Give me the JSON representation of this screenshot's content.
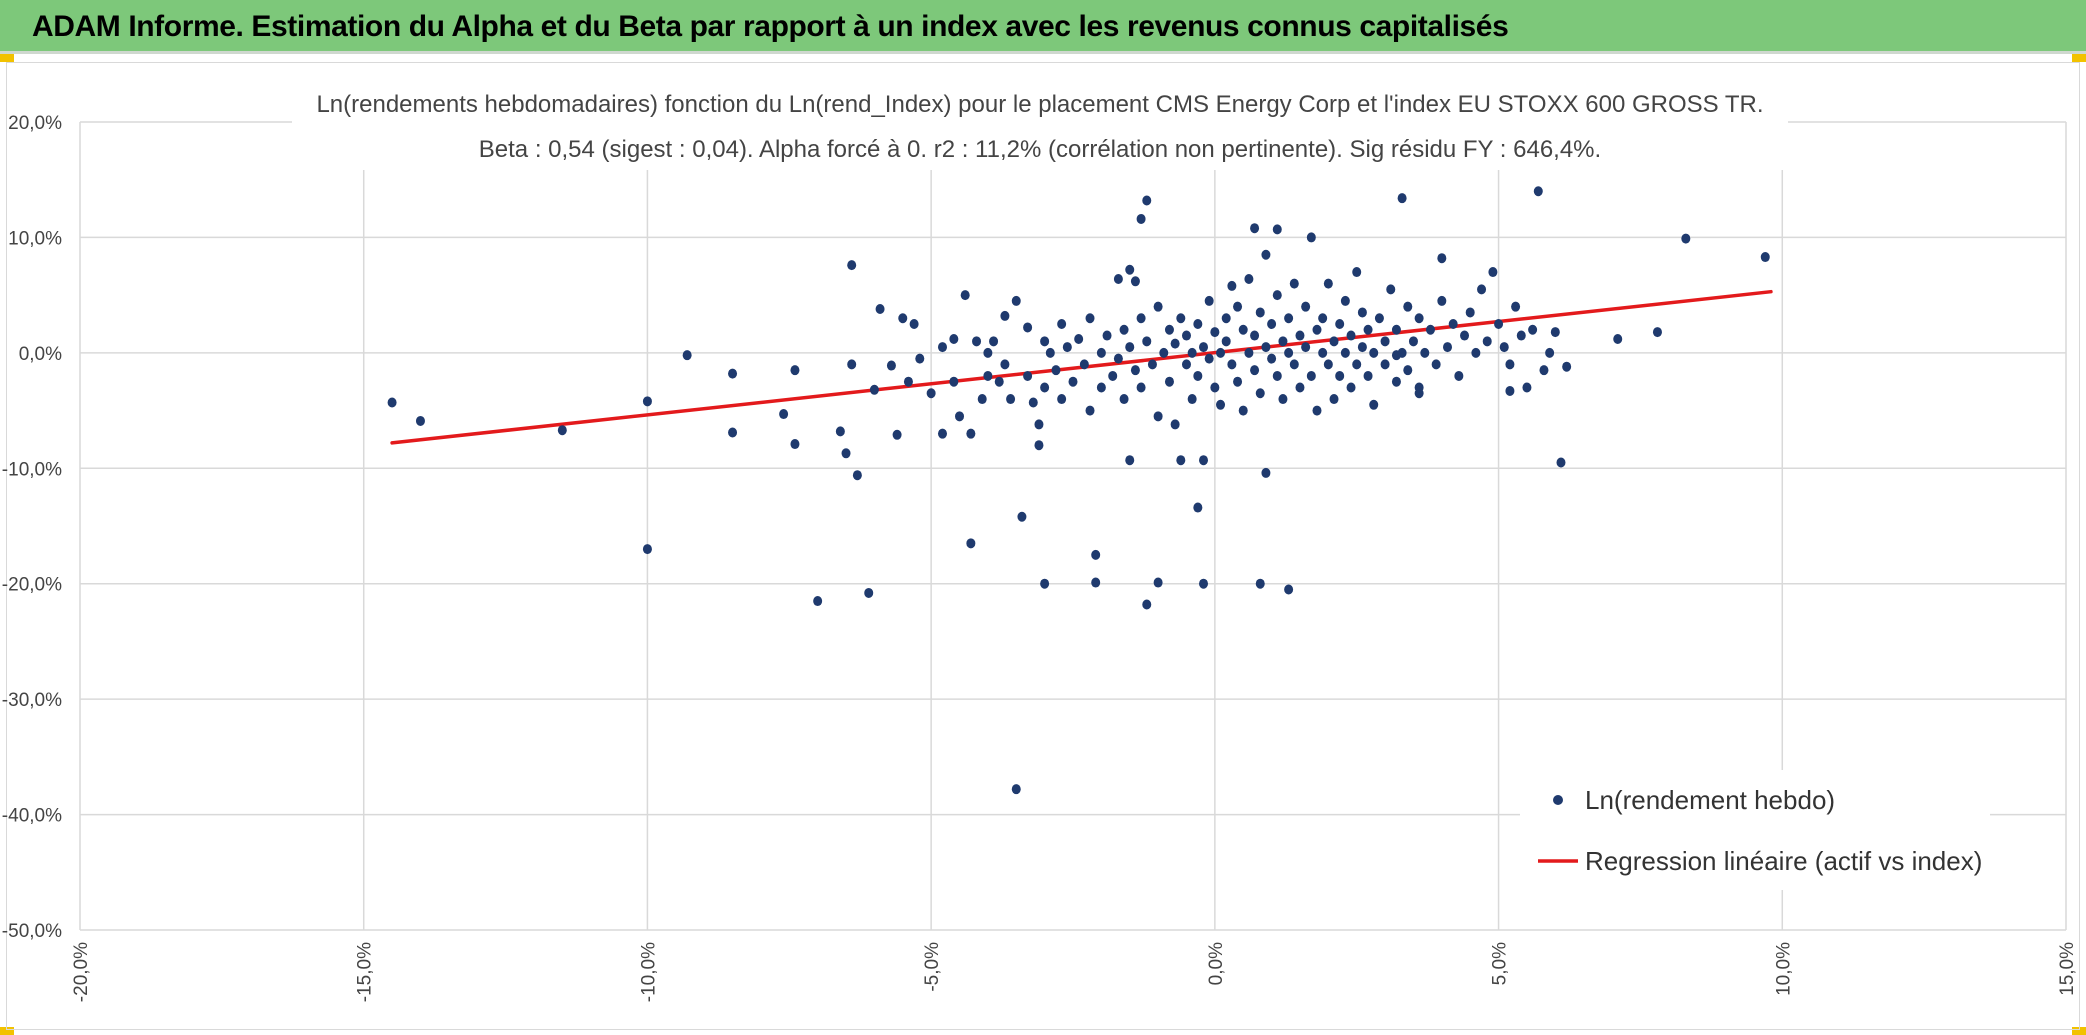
{
  "header": {
    "title": "ADAM Informe. Estimation du Alpha et du Beta par rapport à un index avec les revenus connus capitalisés",
    "background_color": "#7dc87a"
  },
  "chart_data": {
    "type": "scatter",
    "title": "Ln(rendements hebdomadaires) fonction du Ln(rend_Index) pour le placement CMS Energy Corp et l'index EU STOXX 600 GROSS TR.",
    "subtitle": "Beta : 0,54 (sigest : 0,04). Alpha forcé à 0. r2 : 11,2% (corrélation non pertinente). Sig résidu FY : 646,4%.",
    "xlabel": "",
    "ylabel": "",
    "xlim": [
      -0.2,
      0.15
    ],
    "ylim": [
      -0.5,
      0.2
    ],
    "x_ticks": [
      -0.2,
      -0.15,
      -0.1,
      -0.05,
      0.0,
      0.05,
      0.1,
      0.15
    ],
    "x_tick_labels": [
      "-20,0%",
      "-15,0%",
      "-10,0%",
      "-5,0%",
      "0,0%",
      "5,0%",
      "10,0%",
      "15,0%"
    ],
    "y_ticks": [
      0.2,
      0.1,
      0.0,
      -0.1,
      -0.2,
      -0.3,
      -0.4,
      -0.5
    ],
    "y_tick_labels": [
      "20,0%",
      "10,0%",
      "0,0%",
      "-10,0%",
      "-20,0%",
      "-30,0%",
      "-40,0%",
      "-50,0%"
    ],
    "grid": true,
    "legend_position": "bottom-right",
    "series": [
      {
        "name": "Ln(rendement hebdo)",
        "type": "scatter",
        "color": "#1f3a6e",
        "points": [
          [
            -0.145,
            -0.043
          ],
          [
            -0.14,
            -0.059
          ],
          [
            -0.115,
            -0.067
          ],
          [
            -0.1,
            -0.042
          ],
          [
            -0.1,
            -0.17
          ],
          [
            -0.093,
            -0.002
          ],
          [
            -0.085,
            -0.018
          ],
          [
            -0.085,
            -0.069
          ],
          [
            -0.076,
            -0.053
          ],
          [
            -0.074,
            -0.015
          ],
          [
            -0.074,
            -0.079
          ],
          [
            -0.07,
            -0.215
          ],
          [
            -0.066,
            -0.068
          ],
          [
            -0.065,
            -0.087
          ],
          [
            -0.064,
            0.076
          ],
          [
            -0.064,
            -0.01
          ],
          [
            -0.063,
            -0.106
          ],
          [
            -0.061,
            -0.208
          ],
          [
            -0.06,
            -0.032
          ],
          [
            -0.059,
            0.038
          ],
          [
            -0.057,
            -0.011
          ],
          [
            -0.056,
            -0.071
          ],
          [
            -0.055,
            0.03
          ],
          [
            -0.054,
            -0.025
          ],
          [
            -0.053,
            0.025
          ],
          [
            -0.052,
            -0.005
          ],
          [
            -0.05,
            -0.035
          ],
          [
            -0.048,
            0.005
          ],
          [
            -0.048,
            -0.07
          ],
          [
            -0.046,
            0.012
          ],
          [
            -0.046,
            -0.025
          ],
          [
            -0.045,
            -0.055
          ],
          [
            -0.044,
            0.05
          ],
          [
            -0.043,
            -0.07
          ],
          [
            -0.043,
            -0.165
          ],
          [
            -0.042,
            0.01
          ],
          [
            -0.041,
            -0.04
          ],
          [
            -0.04,
            0.0
          ],
          [
            -0.04,
            -0.02
          ],
          [
            -0.039,
            0.01
          ],
          [
            -0.038,
            -0.025
          ],
          [
            -0.037,
            0.032
          ],
          [
            -0.037,
            -0.01
          ],
          [
            -0.036,
            -0.04
          ],
          [
            -0.035,
            0.045
          ],
          [
            -0.035,
            -0.378
          ],
          [
            -0.034,
            -0.142
          ],
          [
            -0.033,
            0.022
          ],
          [
            -0.033,
            -0.02
          ],
          [
            -0.032,
            -0.043
          ],
          [
            -0.031,
            -0.062
          ],
          [
            -0.031,
            -0.08
          ],
          [
            -0.03,
            0.01
          ],
          [
            -0.03,
            -0.03
          ],
          [
            -0.029,
            0.0
          ],
          [
            -0.028,
            -0.015
          ],
          [
            -0.027,
            0.025
          ],
          [
            -0.027,
            -0.04
          ],
          [
            -0.026,
            0.005
          ],
          [
            -0.025,
            -0.025
          ],
          [
            -0.024,
            0.012
          ],
          [
            -0.023,
            -0.01
          ],
          [
            -0.022,
            0.03
          ],
          [
            -0.022,
            -0.05
          ],
          [
            -0.021,
            -0.175
          ],
          [
            -0.021,
            -0.199
          ],
          [
            -0.02,
            0.0
          ],
          [
            -0.02,
            -0.03
          ],
          [
            -0.019,
            0.015
          ],
          [
            -0.018,
            -0.02
          ],
          [
            -0.017,
            0.064
          ],
          [
            -0.017,
            -0.005
          ],
          [
            -0.016,
            0.02
          ],
          [
            -0.016,
            -0.04
          ],
          [
            -0.015,
            0.005
          ],
          [
            -0.015,
            -0.093
          ],
          [
            -0.014,
            -0.015
          ],
          [
            -0.013,
            0.03
          ],
          [
            -0.013,
            -0.03
          ],
          [
            -0.012,
            -0.218
          ],
          [
            -0.012,
            0.01
          ],
          [
            -0.011,
            -0.01
          ],
          [
            -0.01,
            0.04
          ],
          [
            -0.01,
            -0.199
          ],
          [
            -0.01,
            -0.055
          ],
          [
            -0.009,
            0.0
          ],
          [
            -0.008,
            0.02
          ],
          [
            -0.008,
            -0.025
          ],
          [
            -0.007,
            0.008
          ],
          [
            -0.007,
            -0.062
          ],
          [
            -0.006,
            -0.093
          ],
          [
            -0.006,
            0.03
          ],
          [
            -0.005,
            -0.01
          ],
          [
            -0.005,
            0.015
          ],
          [
            -0.004,
            -0.04
          ],
          [
            -0.004,
            0.0
          ],
          [
            -0.003,
            0.025
          ],
          [
            -0.003,
            -0.02
          ],
          [
            -0.003,
            -0.134
          ],
          [
            -0.002,
            0.005
          ],
          [
            -0.002,
            -0.093
          ],
          [
            -0.001,
            0.045
          ],
          [
            -0.001,
            -0.005
          ],
          [
            0.0,
            0.018
          ],
          [
            0.0,
            -0.03
          ],
          [
            0.001,
            0.0
          ],
          [
            0.001,
            -0.045
          ],
          [
            0.002,
            0.03
          ],
          [
            0.002,
            0.01
          ],
          [
            0.003,
            0.058
          ],
          [
            0.003,
            -0.01
          ],
          [
            0.004,
            0.04
          ],
          [
            0.004,
            -0.025
          ],
          [
            0.005,
            0.02
          ],
          [
            0.005,
            -0.05
          ],
          [
            0.006,
            0.0
          ],
          [
            0.006,
            0.064
          ],
          [
            0.007,
            0.015
          ],
          [
            0.007,
            -0.015
          ],
          [
            0.008,
            0.035
          ],
          [
            0.008,
            -0.035
          ],
          [
            0.009,
            0.005
          ],
          [
            0.009,
            0.085
          ],
          [
            0.01,
            -0.005
          ],
          [
            0.01,
            0.025
          ],
          [
            0.011,
            -0.02
          ],
          [
            0.011,
            0.05
          ],
          [
            0.012,
            0.01
          ],
          [
            0.012,
            -0.04
          ],
          [
            0.013,
            0.0
          ],
          [
            0.013,
            0.03
          ],
          [
            0.014,
            -0.01
          ],
          [
            0.014,
            0.06
          ],
          [
            0.015,
            0.015
          ],
          [
            0.015,
            -0.03
          ],
          [
            0.016,
            0.005
          ],
          [
            0.016,
            0.04
          ],
          [
            0.017,
            -0.02
          ],
          [
            0.017,
            0.1
          ],
          [
            0.018,
            0.02
          ],
          [
            0.018,
            -0.05
          ],
          [
            0.019,
            0.0
          ],
          [
            0.019,
            0.03
          ],
          [
            0.02,
            -0.01
          ],
          [
            0.02,
            0.06
          ],
          [
            0.021,
            0.01
          ],
          [
            0.021,
            -0.04
          ],
          [
            0.022,
            0.025
          ],
          [
            0.022,
            -0.02
          ],
          [
            0.023,
            0.0
          ],
          [
            0.023,
            0.045
          ],
          [
            0.024,
            -0.03
          ],
          [
            0.024,
            0.015
          ],
          [
            0.025,
            0.07
          ],
          [
            0.025,
            -0.01
          ],
          [
            0.026,
            0.005
          ],
          [
            0.026,
            0.035
          ],
          [
            0.027,
            -0.02
          ],
          [
            0.027,
            0.02
          ],
          [
            0.028,
            -0.045
          ],
          [
            0.028,
            0.0
          ],
          [
            0.029,
            0.03
          ],
          [
            0.03,
            -0.01
          ],
          [
            0.03,
            0.01
          ],
          [
            0.031,
            0.055
          ],
          [
            0.032,
            -0.025
          ],
          [
            0.032,
            0.02
          ],
          [
            0.033,
            0.0
          ],
          [
            0.034,
            0.04
          ],
          [
            0.034,
            -0.015
          ],
          [
            0.035,
            0.01
          ],
          [
            0.036,
            0.03
          ],
          [
            0.036,
            -0.035
          ],
          [
            0.037,
            0.0
          ],
          [
            0.038,
            0.02
          ],
          [
            0.039,
            -0.01
          ],
          [
            0.04,
            0.045
          ],
          [
            0.041,
            0.005
          ],
          [
            0.042,
            0.025
          ],
          [
            0.043,
            -0.02
          ],
          [
            0.044,
            0.015
          ],
          [
            0.045,
            0.035
          ],
          [
            0.046,
            0.0
          ],
          [
            0.047,
            0.055
          ],
          [
            0.048,
            0.01
          ],
          [
            0.049,
            0.07
          ],
          [
            0.05,
            0.025
          ],
          [
            0.051,
            0.005
          ],
          [
            0.052,
            -0.01
          ],
          [
            0.053,
            0.04
          ],
          [
            0.054,
            0.015
          ],
          [
            0.055,
            -0.03
          ],
          [
            0.056,
            0.02
          ],
          [
            0.057,
            0.14
          ],
          [
            0.058,
            -0.015
          ],
          [
            0.059,
            0.0
          ],
          [
            0.06,
            0.018
          ],
          [
            0.061,
            -0.095
          ],
          [
            0.062,
            -0.012
          ],
          [
            0.071,
            0.012
          ],
          [
            0.078,
            0.018
          ],
          [
            0.083,
            0.099
          ],
          [
            0.097,
            0.083
          ],
          [
            0.033,
            0.134
          ],
          [
            0.04,
            0.082
          ],
          [
            -0.012,
            0.132
          ],
          [
            -0.013,
            0.116
          ],
          [
            -0.015,
            0.072
          ],
          [
            -0.014,
            0.062
          ],
          [
            0.007,
            0.108
          ],
          [
            0.011,
            0.107
          ],
          [
            0.008,
            -0.2
          ],
          [
            0.013,
            -0.205
          ],
          [
            0.009,
            -0.104
          ],
          [
            -0.03,
            -0.2
          ],
          [
            -0.002,
            -0.2
          ],
          [
            0.032,
            -0.002
          ],
          [
            0.036,
            -0.03
          ],
          [
            0.052,
            -0.033
          ]
        ]
      },
      {
        "name": "Regression linéaire (actif vs index)",
        "type": "line",
        "color": "#e31a1c",
        "points": [
          [
            -0.145,
            -0.078
          ],
          [
            0.098,
            0.053
          ]
        ]
      }
    ]
  },
  "colors": {
    "axis": "#d9d9d9",
    "tick_text": "#444444",
    "title_text": "#444444",
    "corner_marker": "#f2c200"
  }
}
